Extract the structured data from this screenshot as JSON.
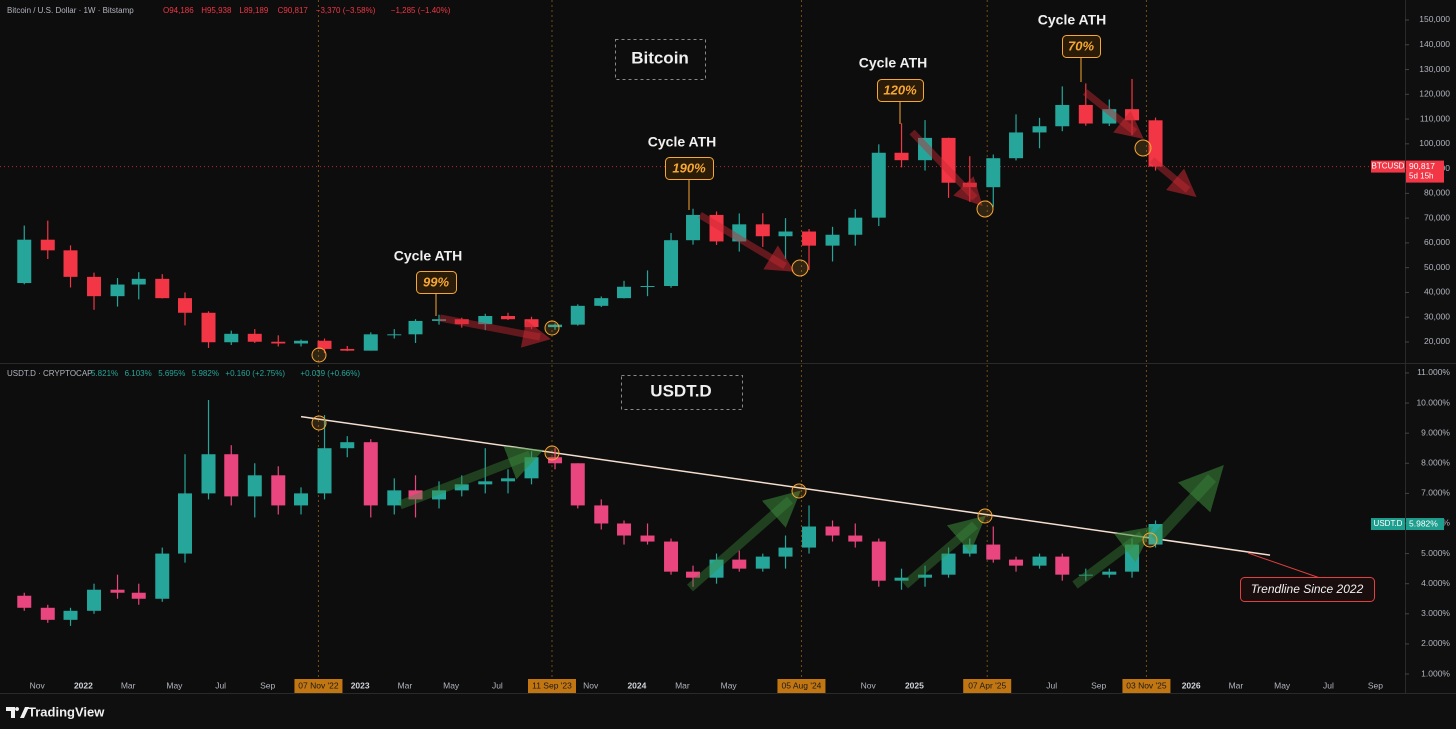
{
  "chart_data": [
    {
      "type": "candlestick",
      "title": "Bitcoin",
      "symbol": "Bitcoin / U.S. Dollar · 1W · Bitstamp",
      "stats": [
        "O94,186",
        "H95,938",
        "L89,189",
        "C90,817",
        "−3,370 (−3.58%)",
        "−1,285 (−1.40%)"
      ],
      "up_color": "#26a69a",
      "down_color": "#f23645",
      "xlim": [
        "2021-09-13",
        "2026-10-10"
      ],
      "ylim": [
        11520,
        158070
      ],
      "yticks": [
        {
          "value": 20000,
          "label": "20,000"
        },
        {
          "value": 30000,
          "label": "30,000"
        },
        {
          "value": 40000,
          "label": "40,000"
        },
        {
          "value": 50000,
          "label": "50,000"
        },
        {
          "value": 60000,
          "label": "60,000"
        },
        {
          "value": 70000,
          "label": "70,000"
        },
        {
          "value": 80000,
          "label": "80,000"
        },
        {
          "value": 90000,
          "label": "90,000"
        },
        {
          "value": 100000,
          "label": "100,000"
        },
        {
          "value": 110000,
          "label": "110,000"
        },
        {
          "value": 120000,
          "label": "120,000"
        },
        {
          "value": 130000,
          "label": "130,000"
        },
        {
          "value": 140000,
          "label": "140,000"
        },
        {
          "value": 150000,
          "label": "150,000"
        }
      ],
      "last_price": {
        "value": 90817,
        "label": "90,817"
      },
      "price_tag": "BTCUSD",
      "countdown": "5d 15h",
      "annotations": [
        {
          "title": "Cycle ATH",
          "label": "99%"
        },
        {
          "title": "Cycle ATH",
          "label": "190%"
        },
        {
          "title": "Cycle ATH",
          "label": "120%"
        },
        {
          "title": "Cycle ATH",
          "label": "70%"
        }
      ],
      "x": [
        "2021-10",
        "2021-11",
        "2021-12",
        "2022-01",
        "2022-02",
        "2022-03",
        "2022-04",
        "2022-05",
        "2022-06",
        "2022-07",
        "2022-08",
        "2022-09",
        "2022-10",
        "2022-11",
        "2022-12",
        "2023-01",
        "2023-02",
        "2023-03",
        "2023-04",
        "2023-05",
        "2023-06",
        "2023-07",
        "2023-08",
        "2023-09",
        "2023-10",
        "2023-11",
        "2023-12",
        "2024-01",
        "2024-02",
        "2024-03",
        "2024-04",
        "2024-05",
        "2024-06",
        "2024-07",
        "2024-08",
        "2024-09",
        "2024-10",
        "2024-11",
        "2024-12",
        "2025-01",
        "2025-02",
        "2025-03",
        "2025-04",
        "2025-05",
        "2025-06",
        "2025-07",
        "2025-08",
        "2025-09",
        "2025-10",
        "2025-11"
      ],
      "open": [
        43800,
        61300,
        57000,
        46300,
        38500,
        43200,
        45500,
        37700,
        31800,
        19900,
        23300,
        20100,
        19400,
        20500,
        17200,
        16500,
        23100,
        23100,
        28500,
        29200,
        27200,
        30500,
        29200,
        26000,
        27000,
        34600,
        37700,
        42300,
        42600,
        61100,
        71300,
        60600,
        67500,
        62700,
        64600,
        58900,
        63300,
        70200,
        96400,
        93400,
        102400,
        84300,
        82500,
        94200,
        104600,
        107100,
        115700,
        108200,
        114000,
        109500
      ],
      "high": [
        67000,
        69000,
        59000,
        48000,
        45800,
        48200,
        47400,
        40000,
        32400,
        24600,
        25200,
        22700,
        21000,
        21400,
        18400,
        23900,
        25200,
        29200,
        31000,
        29800,
        31400,
        31800,
        30200,
        27500,
        35200,
        38400,
        44700,
        48900,
        64000,
        73800,
        72700,
        71900,
        72000,
        70000,
        65600,
        66500,
        73600,
        99800,
        108300,
        109600,
        102500,
        95000,
        95700,
        111900,
        110500,
        123200,
        124400,
        117900,
        126200,
        110600
      ],
      "low": [
        43300,
        53500,
        42000,
        33000,
        34300,
        37200,
        37600,
        26700,
        17600,
        18800,
        19600,
        18200,
        18200,
        15500,
        16300,
        16500,
        21400,
        19600,
        27000,
        25800,
        24800,
        28900,
        25200,
        24900,
        26600,
        34100,
        37600,
        38500,
        41900,
        59300,
        59200,
        56500,
        58400,
        53500,
        49000,
        52500,
        58900,
        66800,
        90500,
        89200,
        78200,
        76600,
        74400,
        93300,
        98200,
        105100,
        107300,
        107200,
        103500,
        89200
      ],
      "close": [
        61300,
        57000,
        46300,
        38500,
        43200,
        45500,
        37700,
        31800,
        19900,
        23300,
        20100,
        19400,
        20500,
        17200,
        16500,
        23100,
        23100,
        28500,
        29200,
        27200,
        30500,
        29200,
        26000,
        27000,
        34600,
        37700,
        42300,
        42600,
        61100,
        71300,
        60600,
        67500,
        62700,
        64600,
        58900,
        63300,
        70200,
        96400,
        93400,
        102400,
        84300,
        82500,
        94200,
        104600,
        107100,
        115700,
        108200,
        114000,
        109500,
        90817
      ]
    },
    {
      "type": "candlestick",
      "title": "USDT.D",
      "symbol": "USDT.D · CRYPTOCAP",
      "stats": [
        "5.821%",
        "6.103%",
        "5.695%",
        "5.982%",
        "+0.160 (+2.75%)",
        "+0.039 (+0.66%)"
      ],
      "up_color": "#26a69a",
      "down_color": "#e9457e",
      "xlim": [
        "2021-09-13",
        "2026-10-10"
      ],
      "ylim": [
        0.37,
        11.33
      ],
      "yticks": [
        {
          "value": 1,
          "label": "1.000%"
        },
        {
          "value": 2,
          "label": "2.000%"
        },
        {
          "value": 3,
          "label": "3.000%"
        },
        {
          "value": 4,
          "label": "4.000%"
        },
        {
          "value": 5,
          "label": "5.000%"
        },
        {
          "value": 6,
          "label": "6.000%"
        },
        {
          "value": 7,
          "label": "7.000%"
        },
        {
          "value": 8,
          "label": "8.000%"
        },
        {
          "value": 9,
          "label": "9.000%"
        },
        {
          "value": 10,
          "label": "10.000%"
        },
        {
          "value": 11,
          "label": "11.000%"
        }
      ],
      "last_price": {
        "value": 5.982,
        "label": "5.982%"
      },
      "price_tag": "USDT.D",
      "trendline": {
        "label": "Trendline Since 2022",
        "x": [
          "2022-10",
          "2026-04"
        ],
        "values": [
          9.55,
          4.95
        ]
      },
      "xticks": [
        {
          "value": "2021-11",
          "label": "Nov"
        },
        {
          "value": "2022-01",
          "label": "2022"
        },
        {
          "value": "2022-03",
          "label": "Mar"
        },
        {
          "value": "2022-05",
          "label": "May"
        },
        {
          "value": "2022-07",
          "label": "Jul"
        },
        {
          "value": "2022-09",
          "label": "Sep"
        },
        {
          "value": "2022-11-07",
          "label": "07 Nov '22",
          "highlight": true
        },
        {
          "value": "2023-01",
          "label": "2023"
        },
        {
          "value": "2023-03",
          "label": "Mar"
        },
        {
          "value": "2023-05",
          "label": "May"
        },
        {
          "value": "2023-07",
          "label": "Jul"
        },
        {
          "value": "2023-09-11",
          "label": "11 Sep '23",
          "highlight": true
        },
        {
          "value": "2023-11",
          "label": "Nov"
        },
        {
          "value": "2024-01",
          "label": "2024"
        },
        {
          "value": "2024-03",
          "label": "Mar"
        },
        {
          "value": "2024-05",
          "label": "May"
        },
        {
          "value": "2024-08-05",
          "label": "05 Aug '24",
          "highlight": true
        },
        {
          "value": "2024-11",
          "label": "Nov"
        },
        {
          "value": "2025-01",
          "label": "2025"
        },
        {
          "value": "2025-04-07",
          "label": "07 Apr '25",
          "highlight": true
        },
        {
          "value": "2025-07",
          "label": "Jul"
        },
        {
          "value": "2025-09",
          "label": "Sep"
        },
        {
          "value": "2025-11-03",
          "label": "03 Nov '25",
          "highlight": true
        },
        {
          "value": "2026-01",
          "label": "2026"
        },
        {
          "value": "2026-03",
          "label": "Mar"
        },
        {
          "value": "2026-05",
          "label": "May"
        },
        {
          "value": "2026-07",
          "label": "Jul"
        },
        {
          "value": "2026-09",
          "label": "Sep"
        }
      ],
      "x": [
        "2021-10",
        "2021-11",
        "2021-12",
        "2022-01",
        "2022-02",
        "2022-03",
        "2022-04",
        "2022-05",
        "2022-06",
        "2022-07",
        "2022-08",
        "2022-09",
        "2022-10",
        "2022-11",
        "2022-12",
        "2023-01",
        "2023-02",
        "2023-03",
        "2023-04",
        "2023-05",
        "2023-06",
        "2023-07",
        "2023-08",
        "2023-09",
        "2023-10",
        "2023-11",
        "2023-12",
        "2024-01",
        "2024-02",
        "2024-03",
        "2024-04",
        "2024-05",
        "2024-06",
        "2024-07",
        "2024-08",
        "2024-09",
        "2024-10",
        "2024-11",
        "2024-12",
        "2025-01",
        "2025-02",
        "2025-03",
        "2025-04",
        "2025-05",
        "2025-06",
        "2025-07",
        "2025-08",
        "2025-09",
        "2025-10",
        "2025-11"
      ],
      "open": [
        3.6,
        3.2,
        2.8,
        3.1,
        3.8,
        3.7,
        3.5,
        5.0,
        7.0,
        8.3,
        6.9,
        7.6,
        6.6,
        7.0,
        8.5,
        8.7,
        6.6,
        7.1,
        6.8,
        7.1,
        7.3,
        7.4,
        7.5,
        8.2,
        8.0,
        6.6,
        6.0,
        5.6,
        5.4,
        4.4,
        4.2,
        4.8,
        4.5,
        4.9,
        5.2,
        5.9,
        5.6,
        5.4,
        4.1,
        4.2,
        4.3,
        5.0,
        5.3,
        4.8,
        4.6,
        4.9,
        4.3,
        4.3,
        4.4,
        5.3
      ],
      "high": [
        3.7,
        3.3,
        3.2,
        4.0,
        4.3,
        4.0,
        5.2,
        8.3,
        10.1,
        8.6,
        8.0,
        7.9,
        7.2,
        9.6,
        8.9,
        8.8,
        7.5,
        7.6,
        7.4,
        7.6,
        8.5,
        7.8,
        8.4,
        8.5,
        8.0,
        6.8,
        6.1,
        6.0,
        5.5,
        4.6,
        5.0,
        5.1,
        5.0,
        5.6,
        6.6,
        6.1,
        6.0,
        5.5,
        4.5,
        4.6,
        5.2,
        5.5,
        5.9,
        4.9,
        5.0,
        5.0,
        4.5,
        4.5,
        5.5,
        6.1
      ],
      "low": [
        3.1,
        2.7,
        2.6,
        3.0,
        3.5,
        3.3,
        3.4,
        4.7,
        6.8,
        6.6,
        6.2,
        6.3,
        6.3,
        6.8,
        8.2,
        6.2,
        6.3,
        6.2,
        6.5,
        6.9,
        7.0,
        7.0,
        7.3,
        7.8,
        6.5,
        5.8,
        5.3,
        5.3,
        4.3,
        3.9,
        4.0,
        4.4,
        4.4,
        4.5,
        5.0,
        5.4,
        5.2,
        3.9,
        3.8,
        3.9,
        4.2,
        4.9,
        4.7,
        4.4,
        4.5,
        4.1,
        4.1,
        4.2,
        4.2,
        5.2
      ],
      "close": [
        3.2,
        2.8,
        3.1,
        3.8,
        3.7,
        3.5,
        5.0,
        7.0,
        8.3,
        6.9,
        7.6,
        6.6,
        7.0,
        8.5,
        8.7,
        6.6,
        7.1,
        6.8,
        7.1,
        7.3,
        7.4,
        7.5,
        8.2,
        8.0,
        6.6,
        6.0,
        5.6,
        5.4,
        4.4,
        4.2,
        4.8,
        4.5,
        4.9,
        5.2,
        5.9,
        5.6,
        5.4,
        4.1,
        4.2,
        4.3,
        5.0,
        5.3,
        4.8,
        4.6,
        4.9,
        4.3,
        4.3,
        4.4,
        5.3,
        5.982
      ]
    }
  ],
  "footer": {
    "brand": "TradingView"
  }
}
